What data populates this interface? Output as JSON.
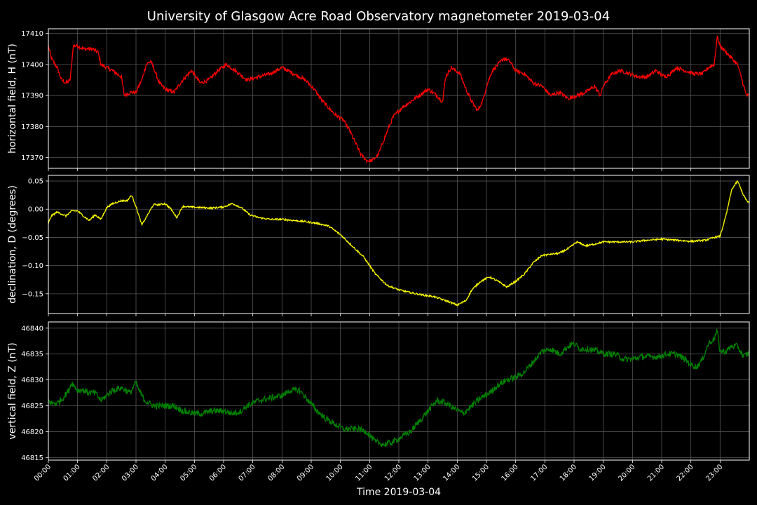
{
  "chart_data": {
    "type": "line",
    "title": "University of Glasgow Acre Road Observatory magnetometer 2019-03-04",
    "xlabel": "Time 2019-03-04",
    "xlim": [
      0,
      24
    ],
    "x_ticks": [
      "00:00",
      "01:00",
      "02:00",
      "03:00",
      "04:00",
      "05:00",
      "06:00",
      "07:00",
      "08:00",
      "09:00",
      "10:00",
      "11:00",
      "12:00",
      "13:00",
      "14:00",
      "15:00",
      "16:00",
      "17:00",
      "18:00",
      "19:00",
      "20:00",
      "21:00",
      "22:00",
      "23:00"
    ],
    "grid": true,
    "panels": [
      {
        "ylabel": "horizontal field, H (nT)",
        "color": "#ff0000",
        "ylim": [
          17366.5,
          17411.5
        ],
        "y_ticks": [
          17370,
          17380,
          17390,
          17400,
          17410
        ],
        "y_tick_labels": [
          "17370",
          "17380",
          "17390",
          "17400",
          "17410"
        ],
        "noise": 0.6,
        "x": [
          0,
          0.1,
          0.3,
          0.45,
          0.6,
          0.75,
          0.85,
          1.0,
          1.2,
          1.4,
          1.5,
          1.7,
          1.8,
          2.0,
          2.2,
          2.5,
          2.6,
          2.8,
          3.0,
          3.2,
          3.35,
          3.5,
          3.6,
          3.8,
          4.0,
          4.3,
          4.6,
          4.9,
          5.2,
          5.5,
          5.8,
          6.1,
          6.4,
          6.8,
          7.2,
          7.6,
          8.0,
          8.4,
          8.8,
          9.1,
          9.4,
          9.8,
          10.1,
          10.3,
          10.5,
          10.7,
          10.9,
          11.1,
          11.3,
          11.5,
          11.8,
          12.1,
          12.4,
          12.7,
          13.0,
          13.3,
          13.5,
          13.6,
          13.8,
          14.1,
          14.3,
          14.5,
          14.7,
          14.9,
          15.0,
          15.2,
          15.4,
          15.6,
          15.8,
          16.0,
          16.3,
          16.6,
          16.9,
          17.2,
          17.5,
          17.8,
          18.1,
          18.4,
          18.7,
          18.9,
          19.0,
          19.3,
          19.6,
          19.9,
          20.2,
          20.5,
          20.8,
          21.1,
          21.3,
          21.5,
          21.8,
          22.1,
          22.4,
          22.6,
          22.8,
          22.9,
          23.0,
          23.2,
          23.4,
          23.6,
          23.9
        ],
        "y": [
          17406,
          17402,
          17399,
          17395,
          17394,
          17395,
          17406,
          17406,
          17405,
          17405,
          17405,
          17404,
          17400,
          17399,
          17398,
          17396,
          17390,
          17391,
          17391,
          17395,
          17400,
          17401,
          17399,
          17394,
          17392,
          17391,
          17395,
          17398,
          17394,
          17395,
          17398,
          17400,
          17398,
          17395,
          17396,
          17397,
          17399,
          17397,
          17395,
          17392,
          17388,
          17384,
          17382,
          17379,
          17375,
          17371,
          17369,
          17369,
          17371,
          17376,
          17383,
          17386,
          17388,
          17390,
          17392,
          17390,
          17388,
          17396,
          17399,
          17397,
          17392,
          17388,
          17385,
          17389,
          17393,
          17398,
          17400,
          17402,
          17401,
          17398,
          17397,
          17394,
          17393,
          17390,
          17391,
          17389,
          17390,
          17391,
          17393,
          17390,
          17393,
          17397,
          17398,
          17397,
          17396,
          17396,
          17398,
          17396,
          17397,
          17399,
          17398,
          17397,
          17397,
          17399,
          17400,
          17409,
          17406,
          17404,
          17402,
          17400,
          17390
        ]
      },
      {
        "ylabel": "declination, D (degrees)",
        "color": "#ffff00",
        "ylim": [
          -0.185,
          0.06
        ],
        "y_ticks": [
          -0.15,
          -0.1,
          -0.05,
          0.0,
          0.05
        ],
        "y_tick_labels": [
          "−0.15",
          "−0.10",
          "−0.05",
          "0.00",
          "0.05"
        ],
        "noise": 0.0015,
        "x": [
          0,
          0.1,
          0.3,
          0.6,
          0.8,
          1.0,
          1.2,
          1.4,
          1.6,
          1.8,
          2.0,
          2.2,
          2.5,
          2.7,
          2.85,
          3.0,
          3.2,
          3.4,
          3.6,
          3.8,
          4.0,
          4.2,
          4.4,
          4.6,
          4.8,
          5.2,
          5.6,
          6.0,
          6.3,
          6.6,
          6.9,
          7.2,
          7.6,
          8.0,
          8.4,
          8.8,
          9.2,
          9.6,
          10.0,
          10.4,
          10.8,
          11.2,
          11.6,
          12.0,
          12.4,
          12.8,
          13.2,
          13.6,
          14.0,
          14.3,
          14.5,
          14.8,
          15.1,
          15.4,
          15.7,
          16.0,
          16.3,
          16.6,
          16.9,
          17.2,
          17.5,
          17.8,
          18.1,
          18.4,
          18.7,
          19.0,
          19.5,
          20.0,
          20.5,
          21.0,
          21.5,
          22.0,
          22.5,
          22.8,
          23.0,
          23.2,
          23.4,
          23.6,
          23.8,
          23.95
        ],
        "y": [
          -0.025,
          -0.012,
          -0.005,
          -0.012,
          -0.003,
          -0.003,
          -0.012,
          -0.02,
          -0.01,
          -0.018,
          0.003,
          0.01,
          0.015,
          0.015,
          0.025,
          0.005,
          -0.028,
          -0.01,
          0.008,
          0.008,
          0.01,
          0.0,
          -0.015,
          0.005,
          0.004,
          0.003,
          0.002,
          0.004,
          0.01,
          0.003,
          -0.01,
          -0.015,
          -0.018,
          -0.018,
          -0.02,
          -0.022,
          -0.025,
          -0.03,
          -0.045,
          -0.065,
          -0.085,
          -0.115,
          -0.135,
          -0.143,
          -0.148,
          -0.152,
          -0.155,
          -0.162,
          -0.17,
          -0.162,
          -0.143,
          -0.128,
          -0.12,
          -0.128,
          -0.138,
          -0.128,
          -0.115,
          -0.095,
          -0.082,
          -0.08,
          -0.078,
          -0.07,
          -0.058,
          -0.065,
          -0.062,
          -0.058,
          -0.058,
          -0.058,
          -0.055,
          -0.053,
          -0.055,
          -0.057,
          -0.055,
          -0.05,
          -0.048,
          -0.012,
          0.035,
          0.05,
          0.025,
          0.012
        ]
      },
      {
        "ylabel": "vertical field, Z (nT)",
        "color": "#008000",
        "ylim": [
          46814.5,
          46841.2
        ],
        "y_ticks": [
          46815,
          46820,
          46825,
          46830,
          46835,
          46840
        ],
        "y_tick_labels": [
          "46815",
          "46820",
          "46825",
          "46830",
          "46835",
          "46840"
        ],
        "noise": 0.6,
        "x": [
          0,
          0.1,
          0.3,
          0.5,
          0.7,
          0.8,
          1.0,
          1.2,
          1.4,
          1.6,
          1.8,
          2.0,
          2.2,
          2.5,
          2.8,
          3.0,
          3.1,
          3.3,
          3.6,
          3.8,
          4.0,
          4.3,
          4.6,
          5.0,
          5.3,
          5.6,
          6.0,
          6.3,
          6.6,
          6.8,
          7.2,
          7.6,
          8.0,
          8.3,
          8.6,
          8.9,
          9.2,
          9.5,
          9.8,
          10.1,
          10.3,
          10.6,
          10.9,
          11.2,
          11.5,
          11.8,
          12.1,
          12.4,
          12.7,
          13.0,
          13.3,
          13.6,
          13.9,
          14.2,
          14.5,
          14.8,
          15.1,
          15.4,
          15.7,
          16.0,
          16.3,
          16.6,
          16.9,
          17.2,
          17.5,
          17.8,
          18.0,
          18.2,
          18.5,
          18.8,
          19.1,
          19.4,
          19.7,
          20.0,
          20.3,
          20.6,
          20.9,
          21.2,
          21.5,
          21.8,
          22.0,
          22.2,
          22.4,
          22.6,
          22.8,
          22.9,
          23.0,
          23.2,
          23.4,
          23.6,
          23.8,
          23.95
        ],
        "y": [
          46826,
          46825.5,
          46825.5,
          46826.5,
          46828,
          46829.5,
          46828,
          46828,
          46827.5,
          46827.5,
          46826,
          46827,
          46828,
          46828.5,
          46827.5,
          46829.5,
          46828,
          46826,
          46825,
          46825,
          46825,
          46825,
          46824,
          46823.5,
          46823.5,
          46824,
          46824,
          46823.5,
          46824,
          46825,
          46826,
          46826.5,
          46827,
          46828,
          46828,
          46826,
          46824,
          46822.5,
          46821.5,
          46820.5,
          46820.5,
          46820.5,
          46820,
          46818,
          46817.5,
          46818,
          46819,
          46820,
          46822,
          46824,
          46826,
          46825.5,
          46824.5,
          46823.5,
          46825,
          46826.5,
          46827.5,
          46829,
          46830,
          46830.5,
          46831.5,
          46833.5,
          46835.5,
          46836,
          46835,
          46836.5,
          46837,
          46836,
          46836,
          46835.5,
          46835,
          46835,
          46834,
          46834,
          46834.5,
          46834.5,
          46834.5,
          46835,
          46835,
          46834,
          46833,
          46832.5,
          46834,
          46837,
          46838,
          46839.5,
          46835.5,
          46835.5,
          46836.5,
          46836.5,
          46834.5,
          46835
        ]
      }
    ]
  }
}
